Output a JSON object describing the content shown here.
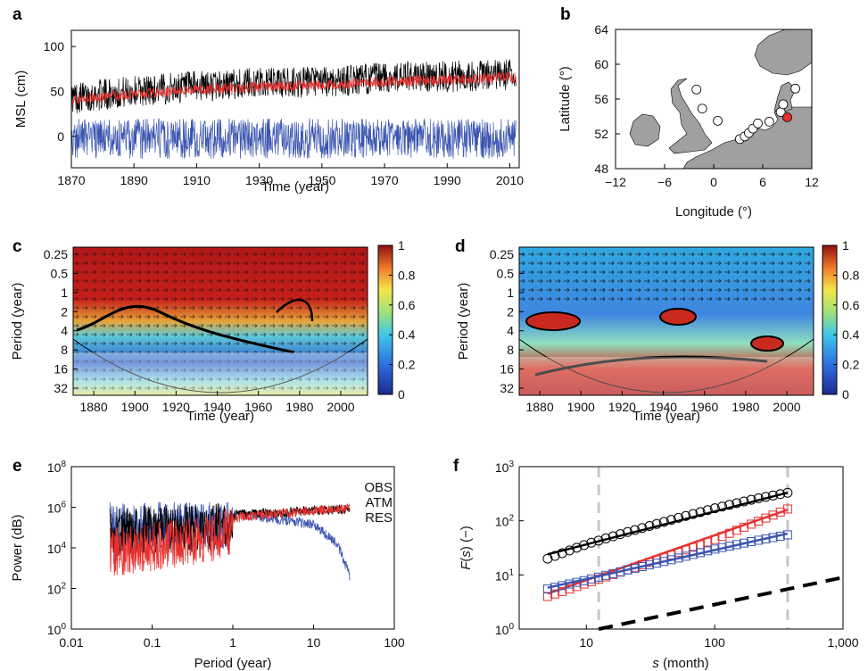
{
  "figure": {
    "panels": {
      "a": {
        "label": "a",
        "xlabel": "Time (year)",
        "ylabel": "MSL (cm)"
      },
      "b": {
        "label": "b",
        "xlabel": "Longitude (°)",
        "ylabel": "Latitude (°)"
      },
      "c": {
        "label": "c",
        "xlabel": "Time (year)",
        "ylabel": "Period (year)"
      },
      "d": {
        "label": "d",
        "xlabel": "Time (year)",
        "ylabel": "Period (year)"
      },
      "e": {
        "label": "e",
        "xlabel": "Period (year)",
        "ylabel": "Power (dB)"
      },
      "f": {
        "label": "f",
        "xlabel": "s (month)",
        "ylabel": "F(s) (−)"
      }
    }
  },
  "chart_data": [
    {
      "panel": "a",
      "type": "line",
      "xlabel": "Time (year)",
      "ylabel": "MSL (cm)",
      "xlim": [
        1870,
        2013
      ],
      "ylim": [
        -35,
        118
      ],
      "xticks": [
        1870,
        1890,
        1910,
        1930,
        1950,
        1970,
        1990,
        2010
      ],
      "yticks": [
        0,
        50,
        100
      ],
      "x": [
        1870,
        1890,
        1910,
        1930,
        1950,
        1970,
        1990,
        2010
      ],
      "series": [
        {
          "name": "",
          "color": "#000000",
          "values": [
            40,
            48,
            53,
            57,
            58,
            63,
            64,
            66
          ],
          "band": [
            -15,
            20
          ]
        },
        {
          "name": "",
          "color": "#e8312f",
          "values": [
            40,
            47,
            52,
            55,
            57,
            61,
            63,
            66
          ],
          "band": [
            -6,
            6
          ]
        },
        {
          "name": "",
          "color": "#3b55b0",
          "values": [
            0,
            0,
            0,
            0,
            0,
            0,
            0,
            0
          ],
          "band": [
            -25,
            20
          ]
        }
      ]
    },
    {
      "panel": "b",
      "type": "scatter",
      "xlabel": "Longitude (°)",
      "ylabel": "Latitude (°)",
      "xlim": [
        -12,
        12
      ],
      "ylim": [
        48,
        64
      ],
      "xticks": [
        -12,
        -6,
        0,
        6,
        12
      ],
      "yticks": [
        48,
        52,
        56,
        60,
        64
      ],
      "stations": [
        {
          "lon": -2.1,
          "lat": 57.1,
          "color": "#ffffff"
        },
        {
          "lon": -1.4,
          "lat": 54.9,
          "color": "#ffffff"
        },
        {
          "lon": 0.5,
          "lat": 53.5,
          "color": "#ffffff"
        },
        {
          "lon": 3.2,
          "lat": 51.4,
          "color": "#ffffff"
        },
        {
          "lon": 3.8,
          "lat": 51.7,
          "color": "#ffffff"
        },
        {
          "lon": 4.3,
          "lat": 52.1,
          "color": "#ffffff"
        },
        {
          "lon": 4.8,
          "lat": 52.6,
          "color": "#ffffff"
        },
        {
          "lon": 5.4,
          "lat": 53.2,
          "color": "#ffffff"
        },
        {
          "lon": 6.8,
          "lat": 53.4,
          "color": "#ffffff"
        },
        {
          "lon": 8.2,
          "lat": 54.5,
          "color": "#ffffff"
        },
        {
          "lon": 8.5,
          "lat": 55.4,
          "color": "#ffffff"
        },
        {
          "lon": 10.0,
          "lat": 57.2,
          "color": "#ffffff"
        },
        {
          "lon": 9.0,
          "lat": 53.9,
          "color": "#e8312f"
        }
      ]
    },
    {
      "panel": "c",
      "type": "heatmap",
      "xlabel": "Time (year)",
      "ylabel": "Period (year)",
      "xlim": [
        1870,
        2013
      ],
      "xticks": [
        1880,
        1900,
        1920,
        1940,
        1960,
        1980,
        2000
      ],
      "yticks": [
        "0.25",
        "0.5",
        "1",
        "2",
        "4",
        "8",
        "16",
        "32"
      ],
      "colorbar": {
        "min": 0,
        "max": 1,
        "ticks": [
          "0",
          "0.2",
          "0.4",
          "0.6",
          "0.8",
          "1"
        ]
      }
    },
    {
      "panel": "d",
      "type": "heatmap",
      "xlabel": "Time (year)",
      "ylabel": "Period (year)",
      "xlim": [
        1870,
        2013
      ],
      "xticks": [
        1880,
        1900,
        1920,
        1940,
        1960,
        1980,
        2000
      ],
      "yticks": [
        "0.25",
        "0.5",
        "1",
        "2",
        "4",
        "8",
        "16",
        "32"
      ],
      "colorbar": {
        "min": 0,
        "max": 1,
        "ticks": [
          "0",
          "0.2",
          "0.4",
          "0.6",
          "0.8",
          "1"
        ]
      }
    },
    {
      "panel": "e",
      "type": "line",
      "xlabel": "Period (year)",
      "ylabel": "Power (dB)",
      "xscale": "log",
      "yscale": "log",
      "xlim": [
        0.01,
        100
      ],
      "ylim": [
        1,
        100000000
      ],
      "xticks": [
        "0.01",
        "0.1",
        "1",
        "10",
        "100"
      ],
      "ytick_exponents": [
        "0",
        "2",
        "4",
        "6",
        "8"
      ],
      "legend": {
        "position": "top-right",
        "entries": [
          {
            "name": "OBS",
            "color": "#000000"
          },
          {
            "name": "ATM",
            "color": "#3b55b0"
          },
          {
            "name": "RES",
            "color": "#e8312f"
          }
        ]
      },
      "series": [
        {
          "name": "OBS",
          "color": "#000000",
          "x": [
            0.03,
            0.1,
            0.5,
            1,
            2,
            5,
            10,
            20,
            28
          ],
          "values": [
            300000,
            400000,
            500000,
            600000,
            700000,
            800000,
            1000000,
            1100000,
            1200000
          ]
        },
        {
          "name": "ATM",
          "color": "#3b55b0",
          "x": [
            0.03,
            0.1,
            0.5,
            1,
            2,
            5,
            10,
            20,
            28
          ],
          "values": [
            600000,
            600000,
            700000,
            700000,
            500000,
            300000,
            200000,
            20000,
            600
          ]
        },
        {
          "name": "RES",
          "color": "#e8312f",
          "x": [
            0.03,
            0.1,
            0.5,
            1,
            2,
            5,
            10,
            20,
            28
          ],
          "values": [
            30000,
            60000,
            150000,
            400000,
            600000,
            700000,
            1000000,
            1100000,
            1200000
          ]
        }
      ]
    },
    {
      "panel": "f",
      "type": "scatter",
      "xlabel": "s (month)",
      "ylabel": "F(s) (−)",
      "xscale": "log",
      "yscale": "log",
      "xlim": [
        3,
        1000
      ],
      "ylim": [
        1,
        1000
      ],
      "xticks": [
        "10",
        "100",
        "1,000"
      ],
      "ytick_exponents": [
        "0",
        "1",
        "2",
        "3"
      ],
      "vlines": [
        12.5,
        370
      ],
      "series": [
        {
          "name": "",
          "color": "#000000",
          "marker": "circle",
          "x": [
            5,
            10,
            20,
            50,
            100,
            200,
            370
          ],
          "values": [
            20,
            37,
            60,
            110,
            170,
            250,
            330
          ],
          "fit": [
            [
              5,
              24
            ],
            [
              370,
              330
            ]
          ]
        },
        {
          "name": "",
          "color": "#e8312f",
          "marker": "square",
          "x": [
            5,
            10,
            20,
            50,
            100,
            200,
            370
          ],
          "values": [
            4,
            7,
            12,
            25,
            45,
            90,
            165
          ],
          "fit": [
            [
              5,
              4.5
            ],
            [
              370,
              160
            ]
          ]
        },
        {
          "name": "",
          "color": "#3b55b0",
          "marker": "square",
          "x": [
            5,
            10,
            20,
            50,
            100,
            200,
            370
          ],
          "values": [
            5.5,
            8,
            12,
            20,
            30,
            42,
            55
          ],
          "fit": [
            [
              5,
              5.8
            ],
            [
              370,
              58
            ]
          ]
        },
        {
          "name": "",
          "color": "#000000",
          "marker": "none",
          "dashed": true,
          "x": [
            12.5,
            1000
          ],
          "values": [
            1,
            9
          ],
          "fit": [
            [
              12.5,
              1
            ],
            [
              1000,
              9
            ]
          ]
        }
      ]
    }
  ]
}
